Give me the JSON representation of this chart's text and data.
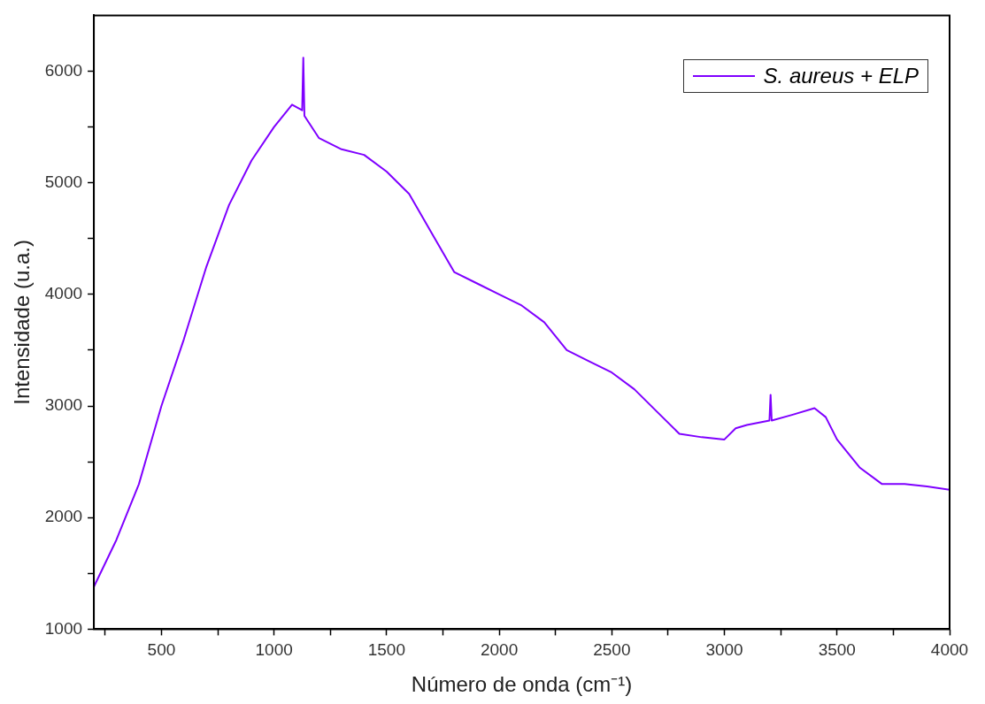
{
  "chart_data": {
    "type": "line",
    "xlabel": "Número de onda (cm⁻¹)",
    "ylabel": "Intensidade (u.a.)",
    "x": [
      200,
      300,
      400,
      500,
      600,
      700,
      800,
      900,
      1000,
      1080,
      1125,
      1130,
      1135,
      1200,
      1300,
      1400,
      1500,
      1600,
      1700,
      1800,
      1900,
      2000,
      2100,
      2200,
      2300,
      2400,
      2500,
      2600,
      2700,
      2800,
      2900,
      3000,
      3050,
      3100,
      3200,
      3205,
      3210,
      3300,
      3400,
      3450,
      3500,
      3600,
      3700,
      3800,
      3900,
      4000
    ],
    "series": [
      {
        "name": "S. aureus + ELP",
        "color": "#7f00ff",
        "values": [
          1380,
          1800,
          2300,
          3000,
          3600,
          4250,
          4800,
          5200,
          5500,
          5700,
          5650,
          6120,
          5600,
          5400,
          5300,
          5250,
          5100,
          4900,
          4550,
          4200,
          4100,
          4000,
          3900,
          3750,
          3500,
          3400,
          3300,
          3150,
          2950,
          2750,
          2720,
          2700,
          2800,
          2830,
          2870,
          3100,
          2870,
          2920,
          2980,
          2900,
          2700,
          2450,
          2300,
          2300,
          2280,
          2250
        ]
      }
    ],
    "xlim": [
      200,
      4000
    ],
    "xticks": [
      {
        "value": 250,
        "label": null
      },
      500,
      {
        "value": 750,
        "label": null
      },
      1000,
      {
        "value": 1250,
        "label": null
      },
      1500,
      {
        "value": 1750,
        "label": null
      },
      2000,
      {
        "value": 2250,
        "label": null
      },
      2500,
      {
        "value": 2750,
        "label": null
      },
      3000,
      {
        "value": 3250,
        "label": null
      },
      3500,
      {
        "value": 3750,
        "label": null
      },
      4000
    ],
    "ylim": [
      1000,
      6500
    ],
    "yticks": [
      1000,
      {
        "value": 1500,
        "label": null
      },
      2000,
      {
        "value": 2500,
        "label": null
      },
      3000,
      {
        "value": 3500,
        "label": null
      },
      4000,
      {
        "value": 4500,
        "label": null
      },
      5000,
      {
        "value": 5500,
        "label": null
      },
      6000
    ],
    "grid": false,
    "legend": "top right",
    "marker": "none",
    "line_style": "solid"
  }
}
